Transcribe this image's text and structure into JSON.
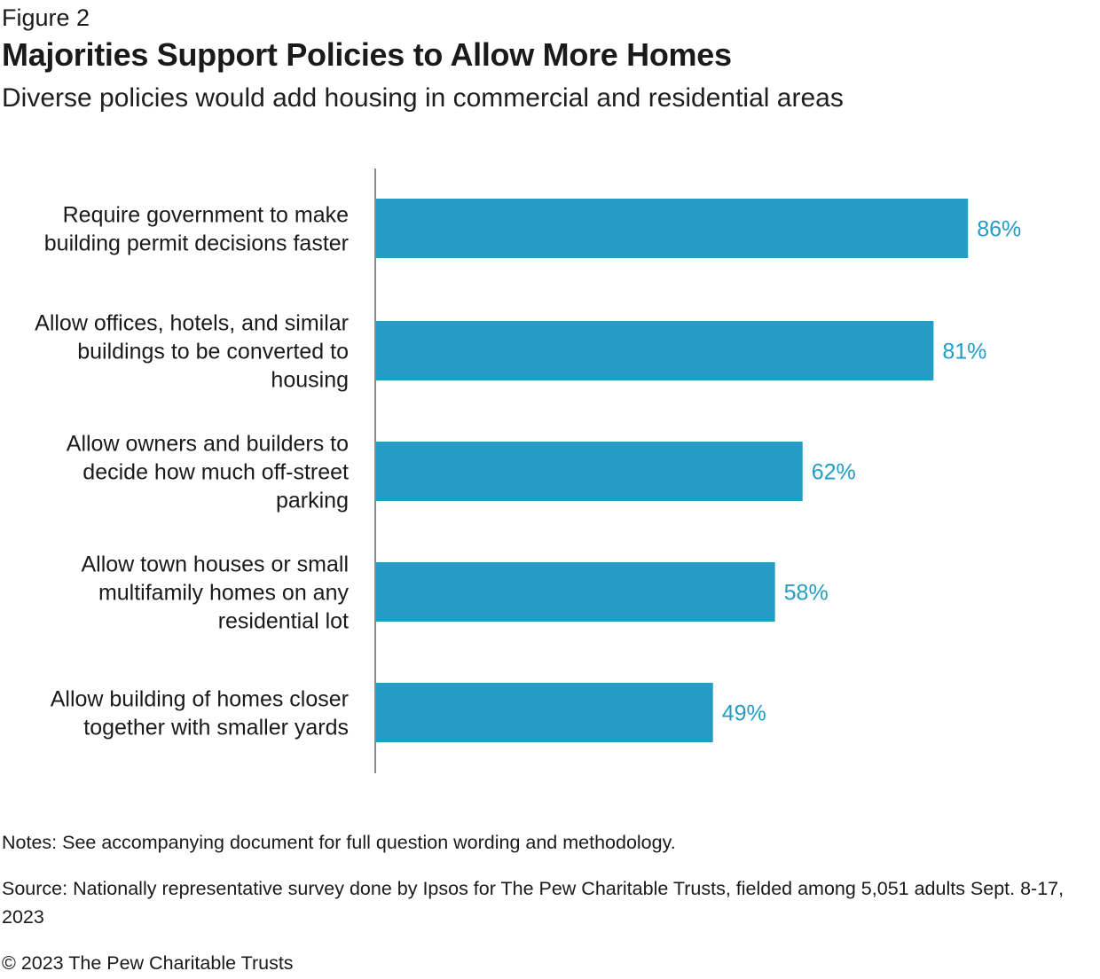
{
  "figure_label": "Figure 2",
  "title": "Majorities Support Policies to Allow More Homes",
  "subtitle": "Diverse policies would add housing in commercial and residential areas",
  "chart_data": {
    "type": "bar",
    "orientation": "horizontal",
    "title": "Majorities Support Policies to Allow More Homes",
    "subtitle": "Diverse policies would add housing in commercial and residential areas",
    "categories": [
      [
        "Require government to make",
        "building permit decisions faster"
      ],
      [
        "Allow offices, hotels, and similar",
        "buildings to be converted to",
        "housing"
      ],
      [
        "Allow owners and builders to",
        "decide how much off-street",
        "parking"
      ],
      [
        "Allow town houses or small",
        "multifamily homes on any",
        "residential lot"
      ],
      [
        "Allow building of homes closer",
        "together with smaller yards"
      ]
    ],
    "values": [
      86,
      81,
      62,
      58,
      49
    ],
    "value_labels": [
      "86%",
      "81%",
      "62%",
      "58%",
      "49%"
    ],
    "xlim": [
      0,
      100
    ],
    "unit": "%",
    "grid": false,
    "bar_color": "#239dc6",
    "label_color": "#239dc6",
    "axis_color": "#8a8a8a"
  },
  "notes": "Notes: See accompanying document for full question wording and methodology.",
  "source": "Source: Nationally representative survey done by Ipsos for The Pew Charitable Trusts, fielded among 5,051 adults Sept. 8-17, 2023",
  "copyright": "© 2023 The Pew Charitable Trusts"
}
